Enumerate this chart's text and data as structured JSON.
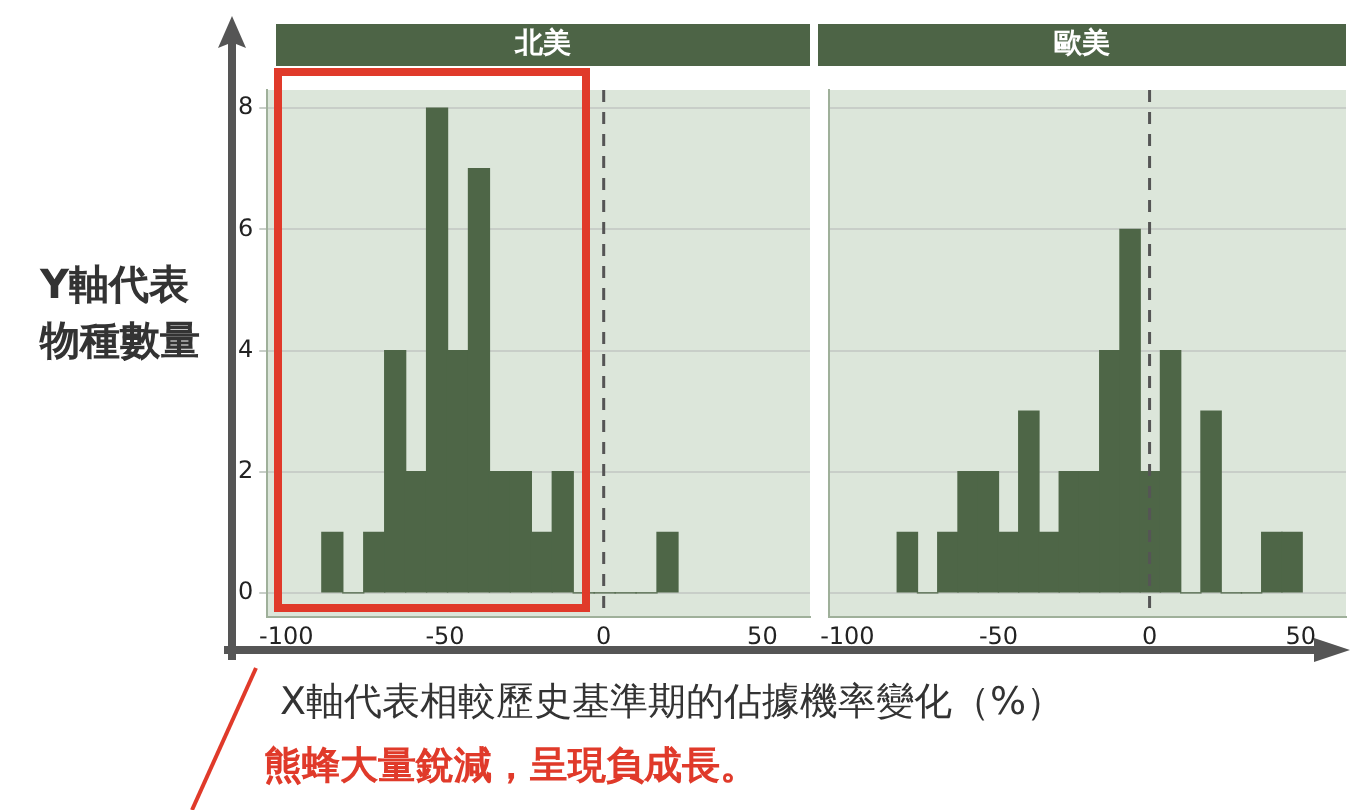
{
  "chart_data": [
    {
      "type": "histogram",
      "title": "北美",
      "ylabel": "Y軸代表物種數量",
      "xlabel": "X軸代表相較歷史基準期的佔據機率變化（%）",
      "annotations": [
        "熊蜂大量銳減，呈現負成長。"
      ],
      "bins": [
        -88.8,
        -82.2,
        -75.6,
        -69,
        -62.4,
        -55.8,
        -49.2,
        -42.6,
        -36,
        -29.4,
        -22.8,
        -16.2,
        -9.6,
        -3,
        3.6,
        10.2,
        16.8,
        23.4
      ],
      "values": [
        1,
        0,
        1,
        4,
        2,
        8,
        4,
        7,
        2,
        2,
        1,
        2,
        0,
        0,
        0,
        0,
        1
      ],
      "color": "#4e6647",
      "xlim": [
        -106,
        65
      ],
      "xticks": [
        -100,
        -50,
        0,
        50
      ],
      "ylim": [
        -0.4,
        8.3
      ],
      "yticks": [
        0,
        2,
        4,
        6,
        8
      ],
      "grid": "y",
      "ref_lines": [
        {
          "axis": "x",
          "value": 0,
          "color": "#555555",
          "line_style": "dashed"
        }
      ]
    },
    {
      "type": "histogram",
      "title": "歐美",
      "bins": [
        -83.5,
        -76.8,
        -70.1,
        -63.4,
        -56.7,
        -50,
        -43.3,
        -36.6,
        -29.9,
        -23.2,
        -16.5,
        -9.8,
        -3.1,
        3.6,
        10.3,
        17,
        23.7,
        30.4,
        37.1,
        43.8,
        50.5
      ],
      "values": [
        1,
        0,
        1,
        2,
        2,
        1,
        3,
        1,
        2,
        2,
        4,
        6,
        2,
        4,
        0,
        3,
        0,
        0,
        1,
        1
      ],
      "color": "#4e6647",
      "xlim": [
        -106,
        65
      ],
      "xticks": [
        -100,
        -50,
        0,
        50
      ],
      "ylim": [
        -0.4,
        8.3
      ],
      "yticks": [
        0,
        2,
        4,
        6,
        8
      ],
      "grid": "y",
      "tick_labels": "x",
      "ref_lines": [
        {
          "axis": "x",
          "value": 0,
          "color": "#555555",
          "line_style": "dashed"
        }
      ]
    }
  ]
}
